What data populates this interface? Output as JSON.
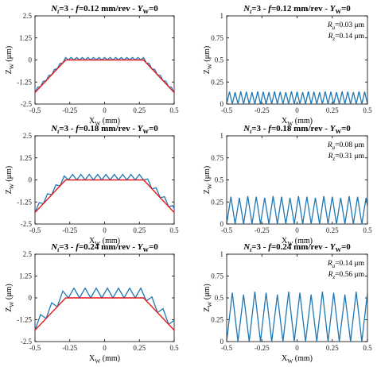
{
  "colors": {
    "measured": "#1f77b4",
    "ideal": "#e41a1c",
    "axes": "#000000"
  },
  "chart_data": [
    {
      "type": "line",
      "title": {
        "n": "N",
        "n_sub": "t",
        "eq": "=3 - ",
        "f": "f",
        "rest": "=0.12 mm/rev - ",
        "y": "Y",
        "y_sub": "W",
        "tail": "=0"
      },
      "xlabel": {
        "main": "X",
        "sub": "W",
        "unit": " (mm)"
      },
      "ylabel": {
        "main": "Z",
        "sub": "W",
        "unit": " (μm)"
      },
      "xlim": [
        -0.5,
        0.5
      ],
      "ylim": [
        -2.5,
        2.5
      ],
      "xticks": [
        "-0.5",
        "-0.25",
        "0",
        "0.25",
        "0.5"
      ],
      "yticks": [
        "2.5",
        "1.25",
        "0",
        "-1.25",
        "-2.5"
      ],
      "grid": false,
      "feed_mm": 0.12,
      "flat_halfwidth": 0.28,
      "ideal_edge_z": -1.85,
      "peak_height": 0.14,
      "series": [
        {
          "label": "measured"
        },
        {
          "label": "ideal"
        }
      ]
    },
    {
      "type": "line",
      "title": {
        "n": "N",
        "n_sub": "t",
        "eq": "=3 - ",
        "f": "f",
        "rest": "=0.12 mm/rev - ",
        "y": "Y",
        "y_sub": "W",
        "tail": "=0"
      },
      "xlabel": {
        "main": "X",
        "sub": "W",
        "unit": " (mm)"
      },
      "ylabel": {
        "main": "Z",
        "sub": "W",
        "unit": " (μm)"
      },
      "xlim": [
        -0.5,
        0.5
      ],
      "ylim": [
        0,
        1
      ],
      "xticks": [
        "-0.5",
        "-0.25",
        "0",
        "0.25",
        "0.5"
      ],
      "yticks": [
        "1",
        "0.75",
        "0.5",
        "0.25",
        "0"
      ],
      "grid": false,
      "feed_mm": 0.12,
      "peak_height": 0.14,
      "annotations": [
        {
          "main": "R",
          "sub": "a",
          "value": "=0.03 μm"
        },
        {
          "main": "R",
          "sub": "z",
          "value": "=0.14 μm"
        }
      ]
    },
    {
      "type": "line",
      "title": {
        "n": "N",
        "n_sub": "t",
        "eq": "=3 - ",
        "f": "f",
        "rest": "=0.18 mm/rev - ",
        "y": "Y",
        "y_sub": "W",
        "tail": "=0"
      },
      "xlabel": {
        "main": "X",
        "sub": "W",
        "unit": " (mm)"
      },
      "ylabel": {
        "main": "Z",
        "sub": "W",
        "unit": " (μm)"
      },
      "xlim": [
        -0.5,
        0.5
      ],
      "ylim": [
        -2.5,
        2.5
      ],
      "xticks": [
        "-0.5",
        "-0.25",
        "0",
        "0.25",
        "0.5"
      ],
      "yticks": [
        "2.5",
        "1.25",
        "0",
        "-1.25",
        "-2.5"
      ],
      "grid": false,
      "feed_mm": 0.18,
      "flat_halfwidth": 0.28,
      "ideal_edge_z": -1.85,
      "peak_height": 0.31,
      "series": [
        {
          "label": "measured"
        },
        {
          "label": "ideal"
        }
      ]
    },
    {
      "type": "line",
      "title": {
        "n": "N",
        "n_sub": "t",
        "eq": "=3 - ",
        "f": "f",
        "rest": "=0.18 mm/rev - ",
        "y": "Y",
        "y_sub": "W",
        "tail": "=0"
      },
      "xlabel": {
        "main": "X",
        "sub": "W",
        "unit": " (mm)"
      },
      "ylabel": {
        "main": "Z",
        "sub": "W",
        "unit": " (μm)"
      },
      "xlim": [
        -0.5,
        0.5
      ],
      "ylim": [
        0,
        1
      ],
      "xticks": [
        "-0.5",
        "-0.25",
        "0",
        "0.25",
        "0.5"
      ],
      "yticks": [
        "1",
        "0.75",
        "0.5",
        "0.25",
        "0"
      ],
      "grid": false,
      "feed_mm": 0.18,
      "peak_height": 0.31,
      "annotations": [
        {
          "main": "R",
          "sub": "a",
          "value": "=0.08 μm"
        },
        {
          "main": "R",
          "sub": "z",
          "value": "=0.31 μm"
        }
      ]
    },
    {
      "type": "line",
      "title": {
        "n": "N",
        "n_sub": "t",
        "eq": "=3 - ",
        "f": "f",
        "rest": "=0.24 mm/rev - ",
        "y": "Y",
        "y_sub": "W",
        "tail": "=0"
      },
      "xlabel": {
        "main": "X",
        "sub": "W",
        "unit": " (mm)"
      },
      "ylabel": {
        "main": "Z",
        "sub": "W",
        "unit": " (μm)"
      },
      "xlim": [
        -0.5,
        0.5
      ],
      "ylim": [
        -2.5,
        2.5
      ],
      "xticks": [
        "-0.5",
        "-0.25",
        "0",
        "0.25",
        "0.5"
      ],
      "yticks": [
        "2.5",
        "1.25",
        "0",
        "-1.25",
        "-2.5"
      ],
      "grid": false,
      "feed_mm": 0.24,
      "flat_halfwidth": 0.28,
      "ideal_edge_z": -1.85,
      "peak_height": 0.56,
      "series": [
        {
          "label": "measured"
        },
        {
          "label": "ideal"
        }
      ]
    },
    {
      "type": "line",
      "title": {
        "n": "N",
        "n_sub": "t",
        "eq": "=3 - ",
        "f": "f",
        "rest": "=0.24 mm/rev - ",
        "y": "Y",
        "y_sub": "W",
        "tail": "=0"
      },
      "xlabel": {
        "main": "X",
        "sub": "W",
        "unit": " (mm)"
      },
      "ylabel": {
        "main": "Z",
        "sub": "W",
        "unit": " (μm)"
      },
      "xlim": [
        -0.5,
        0.5
      ],
      "ylim": [
        0,
        1
      ],
      "xticks": [
        "-0.5",
        "-0.25",
        "0",
        "0.25",
        "0.5"
      ],
      "yticks": [
        "1",
        "0.75",
        "0.5",
        "0.25",
        "0"
      ],
      "grid": false,
      "feed_mm": 0.24,
      "peak_height": 0.56,
      "annotations": [
        {
          "main": "R",
          "sub": "a",
          "value": "=0.14 μm"
        },
        {
          "main": "R",
          "sub": "z",
          "value": "=0.56 μm"
        }
      ]
    }
  ]
}
